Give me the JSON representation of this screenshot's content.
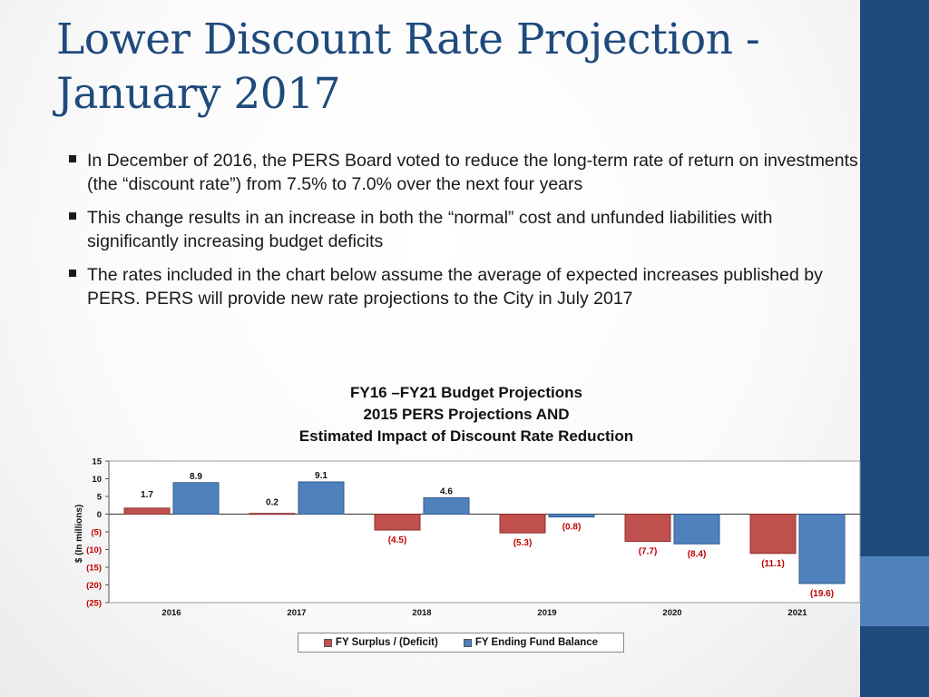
{
  "slide": {
    "title": "Lower Discount Rate Projection - January 2017",
    "bullets": [
      "In December of 2016, the PERS Board voted to reduce the long-term rate of return on investments (the “discount rate”) from 7.5% to 7.0% over the next four years",
      "This change results in an increase in both the “normal” cost and unfunded liabilities with significantly increasing budget deficits",
      "The rates included in the chart below assume the average of expected increases published by PERS.  PERS will provide new rate projections to the City in July 2017"
    ]
  },
  "colors": {
    "title": "#1f4a7c",
    "sidebar_dark": "#1f4a7c",
    "sidebar_light": "#4f81bd",
    "surplus": "#c0504d",
    "fund_balance": "#4f81bd",
    "negative_label": "#c00000"
  },
  "chart_data": {
    "type": "bar",
    "title_lines": [
      "FY16 –FY21 Budget Projections",
      "2015 PERS Projections AND",
      "Estimated Impact of Discount Rate Reduction"
    ],
    "categories": [
      "2016",
      "2017",
      "2018",
      "2019",
      "2020",
      "2021"
    ],
    "series": [
      {
        "name": "FY Surplus / (Deficit)",
        "values": [
          1.7,
          0.2,
          -4.5,
          -5.3,
          -7.7,
          -11.1
        ],
        "labels": [
          "1.7",
          "0.2",
          "(4.5)",
          "(5.3)",
          "(7.7)",
          "(11.1)"
        ]
      },
      {
        "name": "FY Ending Fund Balance",
        "values": [
          8.9,
          9.1,
          4.6,
          -0.8,
          -8.4,
          -19.6
        ],
        "labels": [
          "8.9",
          "9.1",
          "4.6",
          "(0.8)",
          "(8.4)",
          "(19.6)"
        ]
      }
    ],
    "ylabel": "$ (In millions)",
    "ylim": [
      -25,
      15
    ],
    "yticks": [
      15,
      10,
      5,
      0,
      -5,
      -10,
      -15,
      -20,
      -25
    ],
    "ytick_labels": [
      "15",
      "10",
      "5",
      "0",
      "(5)",
      "(10)",
      "(15)",
      "(20)",
      "(25)"
    ],
    "legend": {
      "position": "bottom",
      "entries": [
        "FY Surplus / (Deficit)",
        "FY Ending Fund Balance"
      ]
    }
  }
}
